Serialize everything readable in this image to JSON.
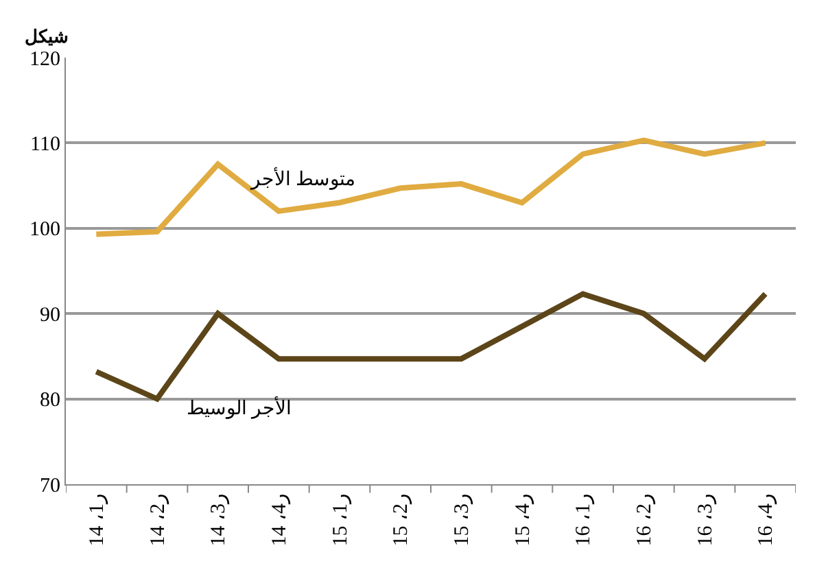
{
  "chart_data": {
    "type": "line",
    "ylabel": "شيكل",
    "categories": [
      "ر1، 14",
      "ر2، 14",
      "ر3، 14",
      "ر4، 14",
      "ر1، 15",
      "ر2، 15",
      "ر3، 15",
      "ر4، 15",
      "ر1، 16",
      "ر2، 16",
      "ر3، 16",
      "ر4، 16"
    ],
    "series": [
      {
        "name": "متوسط الأجر",
        "color": "#e0ab40",
        "values": [
          99.3,
          99.6,
          107.5,
          102,
          103,
          104.7,
          105.2,
          103,
          108.7,
          110.3,
          108.7,
          110
        ]
      },
      {
        "name": "الأجر الوسيط",
        "color": "#5c4518",
        "values": [
          83.2,
          80,
          90,
          84.7,
          84.7,
          84.7,
          84.7,
          88.5,
          92.3,
          90,
          84.7,
          92.3
        ]
      }
    ],
    "ylim": [
      70,
      120
    ],
    "yticks": [
      70,
      80,
      90,
      100,
      110,
      120
    ],
    "grid": "y",
    "legend": false,
    "marker": "none",
    "line_style": "solid"
  }
}
